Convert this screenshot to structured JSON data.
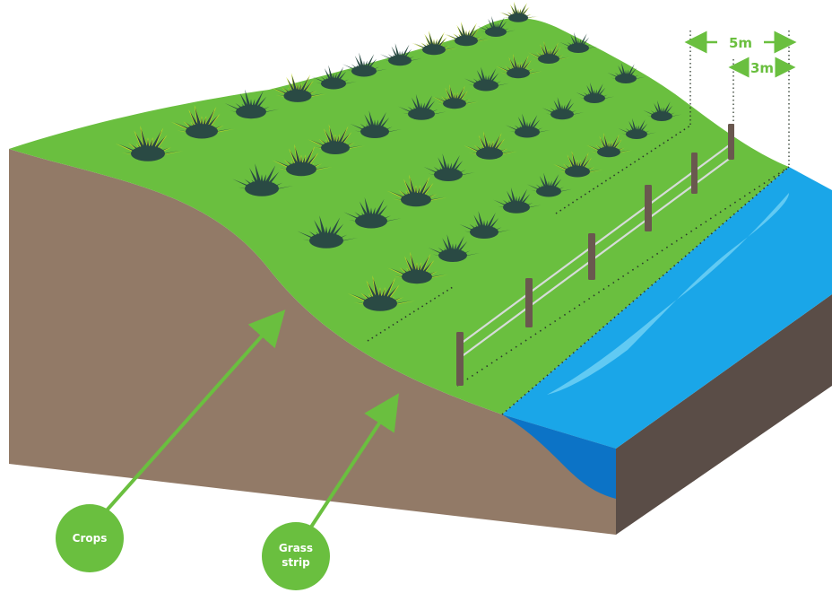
{
  "colors": {
    "grass": "#6abf3f",
    "soil": "#927a67",
    "soil_dark": "#5a4d47",
    "water_light": "#1aa6e8",
    "water_deep": "#0c73c6",
    "water_shine": "#6fd0f5",
    "plant_dark": "#2a4a44",
    "plant_light": "#c9d825",
    "post": "#6a584f",
    "wire": "#d6dcd8",
    "accent": "#6abf3f"
  },
  "dimensions": {
    "outer": "5m",
    "inner": "3m"
  },
  "callouts": {
    "crops": "Crops",
    "grass_strip_line1": "Grass",
    "grass_strip_line2": "strip"
  },
  "icons": [
    "arrow-left-icon",
    "arrow-right-icon",
    "arrow-up-icon"
  ]
}
